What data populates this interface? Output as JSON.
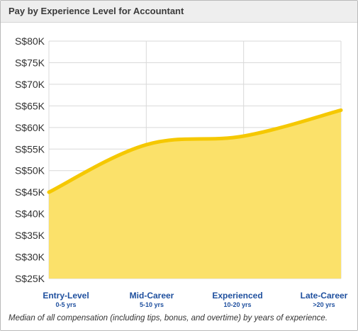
{
  "panel": {
    "title": "Pay by Experience Level for Accountant",
    "footnote": "Median of all compensation (including tips, bonus, and overtime) by years of experience."
  },
  "chart_data": {
    "type": "area",
    "title": "Pay by Experience Level for Accountant",
    "xlabel": "",
    "ylabel": "",
    "categories": [
      {
        "label": "Entry-Level",
        "sublabel": "0-5 yrs"
      },
      {
        "label": "Mid-Career",
        "sublabel": "5-10 yrs"
      },
      {
        "label": "Experienced",
        "sublabel": "10-20 yrs"
      },
      {
        "label": "Late-Career",
        "sublabel": ">20 yrs"
      }
    ],
    "values": [
      45000,
      56000,
      58000,
      64000
    ],
    "ylim": [
      25000,
      80000
    ],
    "yticks": [
      "S$25K",
      "S$30K",
      "S$35K",
      "S$40K",
      "S$45K",
      "S$50K",
      "S$55K",
      "S$60K",
      "S$65K",
      "S$70K",
      "S$75K",
      "S$80K"
    ],
    "grid": true,
    "colors": {
      "fill": "#fbe16a",
      "line": "#f5c800",
      "grid": "#d9d9d9",
      "category_label": "#1e4f9e",
      "tick_label": "#333333"
    }
  }
}
